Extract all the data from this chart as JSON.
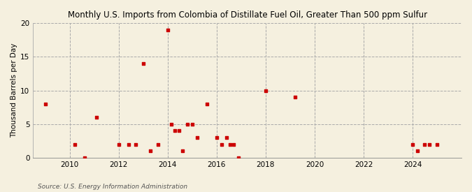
{
  "title": "Monthly U.S. Imports from Colombia of Distillate Fuel Oil, Greater Than 500 ppm Sulfur",
  "ylabel": "Thousand Barrels per Day",
  "source": "Source: U.S. Energy Information Administration",
  "background_color": "#f5f0df",
  "marker_color": "#cc0000",
  "xlim": [
    2008.5,
    2026.0
  ],
  "ylim": [
    0,
    20
  ],
  "yticks": [
    0,
    5,
    10,
    15,
    20
  ],
  "xticks": [
    2010,
    2012,
    2014,
    2016,
    2018,
    2020,
    2022,
    2024
  ],
  "data_points": [
    [
      2009.0,
      8.0
    ],
    [
      2010.2,
      2.0
    ],
    [
      2010.6,
      0.0
    ],
    [
      2011.1,
      6.0
    ],
    [
      2012.0,
      2.0
    ],
    [
      2012.4,
      2.0
    ],
    [
      2012.7,
      2.0
    ],
    [
      2013.0,
      14.0
    ],
    [
      2013.3,
      1.0
    ],
    [
      2013.6,
      2.0
    ],
    [
      2014.0,
      19.0
    ],
    [
      2014.15,
      5.0
    ],
    [
      2014.3,
      4.0
    ],
    [
      2014.45,
      4.0
    ],
    [
      2014.6,
      1.0
    ],
    [
      2014.8,
      5.0
    ],
    [
      2015.0,
      5.0
    ],
    [
      2015.2,
      3.0
    ],
    [
      2015.6,
      8.0
    ],
    [
      2016.0,
      3.0
    ],
    [
      2016.2,
      2.0
    ],
    [
      2016.4,
      3.0
    ],
    [
      2016.55,
      2.0
    ],
    [
      2016.7,
      2.0
    ],
    [
      2016.9,
      0.0
    ],
    [
      2018.0,
      10.0
    ],
    [
      2019.2,
      9.0
    ],
    [
      2024.0,
      2.0
    ],
    [
      2024.2,
      1.0
    ],
    [
      2024.5,
      2.0
    ],
    [
      2024.7,
      2.0
    ],
    [
      2025.0,
      2.0
    ]
  ]
}
